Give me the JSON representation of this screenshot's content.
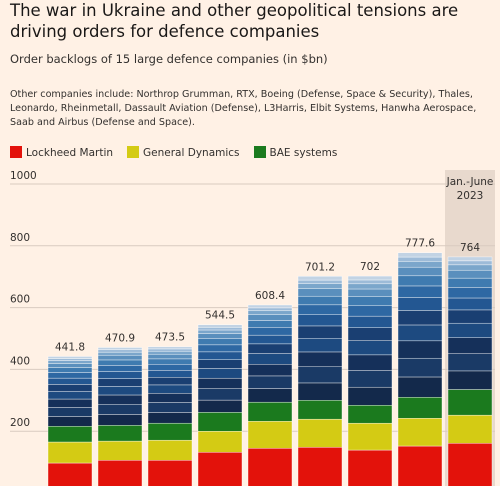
{
  "chart_data": {
    "type": "stacked_bar",
    "title": "The war in Ukraine and other geopolitical tensions are driving orders for defence companies",
    "subtitle": "Order backlogs of 15 large defence companies (in $bn)",
    "note": "Other companies include: Northrop Grumman, RTX, Boeing (Defense, Space & Security), Thales, Leonardo, Rheinmetall, Dassault Aviation (Defense), L3Harris, Elbit Systems, Hanwha Aerospace, Saab and Airbus (Defense and Space).",
    "categories": [
      null,
      null,
      null,
      null,
      null,
      null,
      null,
      null,
      null
    ],
    "series": [
      {
        "name": "Lockheed Martin",
        "color": "#e3120b",
        "values": [
          97,
          106,
          106,
          132,
          145,
          148,
          139,
          152,
          161
        ]
      },
      {
        "name": "General Dynamics",
        "color": "#d4cb14",
        "values": [
          68,
          62,
          65,
          68,
          87,
          91,
          87,
          90,
          91
        ]
      },
      {
        "name": "BAE systems",
        "color": "#1b7a1e",
        "values": [
          51,
          51,
          55,
          61,
          62,
          61,
          58,
          68,
          83
        ]
      },
      {
        "color": "#13294b",
        "values": [
          31.6,
          35.3,
          34.7,
          39.7,
          44.0,
          56.2,
          58.5,
          65.5,
          60.1
        ]
      },
      {
        "color": "#1a3a66",
        "values": [
          29.4,
          32.7,
          32.2,
          36.9,
          40.9,
          52.2,
          54.3,
          60.8,
          55.8
        ]
      },
      {
        "color": "#15305a",
        "values": [
          27.1,
          30.2,
          29.7,
          34.0,
          37.7,
          48.1,
          50.2,
          56.1,
          51.5
        ]
      },
      {
        "color": "#1d4a80",
        "values": [
          24.8,
          27.7,
          27.2,
          31.2,
          34.6,
          44.1,
          46.0,
          51.4,
          47.2
        ]
      },
      {
        "color": "#1a3f72",
        "values": [
          22.6,
          25.2,
          24.8,
          28.4,
          31.4,
          40.1,
          41.8,
          46.8,
          42.9
        ]
      },
      {
        "color": "#235792",
        "values": [
          20.3,
          22.7,
          22.3,
          25.5,
          28.3,
          36.1,
          37.6,
          42.1,
          38.6
        ]
      },
      {
        "color": "#2e68a3",
        "values": [
          18.1,
          20.2,
          19.8,
          22.7,
          25.2,
          32.1,
          33.4,
          37.4,
          34.3
        ]
      },
      {
        "color": "#3f7bb0",
        "values": [
          15.8,
          17.6,
          17.3,
          19.8,
          22.0,
          28.1,
          29.3,
          32.7,
          30.0
        ]
      },
      {
        "color": "#5a8fbd",
        "values": [
          13.5,
          15.1,
          14.9,
          17.0,
          18.9,
          24.1,
          25.1,
          28.1,
          25.7
        ]
      },
      {
        "color": "#7ba6cb",
        "values": [
          9.0,
          10.1,
          9.9,
          11.3,
          12.6,
          16.0,
          16.7,
          18.7,
          17.2
        ]
      },
      {
        "color": "#9dbbd8",
        "values": [
          6.8,
          7.6,
          7.4,
          8.5,
          9.4,
          12.0,
          12.5,
          14.0,
          12.9
        ]
      },
      {
        "color": "#c2d3e4",
        "values": [
          6.8,
          7.5,
          7.3,
          8.5,
          9.4,
          12.1,
          12.6,
          14.0,
          12.8
        ]
      }
    ],
    "totals": [
      441.8,
      470.9,
      473.5,
      544.5,
      608.4,
      701.2,
      702,
      777.6,
      764
    ],
    "annotation": [
      "Jan.-June",
      "2023"
    ],
    "ylim": [
      0,
      1000
    ],
    "yticks": [
      200,
      400,
      600,
      800,
      1000
    ],
    "grid": true
  }
}
